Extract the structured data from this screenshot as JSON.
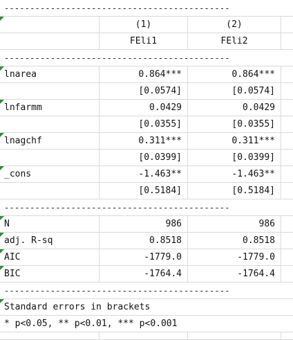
{
  "rows": [
    {
      "c1": "--------------------------------------------",
      "c2": "",
      "c3": "",
      "c4": ""
    },
    {
      "c1": "",
      "c2": "(1)",
      "c3": "(2)",
      "c4": ""
    },
    {
      "c1": "",
      "c2": "FEli1",
      "c3": "FEli2",
      "c4": ""
    },
    {
      "c1": "--------------------------------------------",
      "c2": "",
      "c3": "",
      "c4": ""
    },
    {
      "c1": "lnarea",
      "c2": "0.864***",
      "c3": "0.864***",
      "c4": ""
    },
    {
      "c1": "",
      "c2": "[0.0574]",
      "c3": "[0.0574]",
      "c4": ""
    },
    {
      "c1": "lnfarmm",
      "c2": "0.0429",
      "c3": "0.0429",
      "c4": ""
    },
    {
      "c1": "",
      "c2": "[0.0355]",
      "c3": "[0.0355]",
      "c4": ""
    },
    {
      "c1": "lnagchf",
      "c2": "0.311***",
      "c3": "0.311***",
      "c4": ""
    },
    {
      "c1": "",
      "c2": "[0.0399]",
      "c3": "[0.0399]",
      "c4": ""
    },
    {
      "c1": "_cons",
      "c2": "-1.463**",
      "c3": "-1.463**",
      "c4": ""
    },
    {
      "c1": "",
      "c2": "[0.5184]",
      "c3": "[0.5184]",
      "c4": ""
    },
    {
      "c1": "--------------------------------------------",
      "c2": "",
      "c3": "",
      "c4": ""
    },
    {
      "c1": "N",
      "c2": "986",
      "c3": "986",
      "c4": ""
    },
    {
      "c1": "adj. R-sq",
      "c2": "0.8518",
      "c3": "0.8518",
      "c4": ""
    },
    {
      "c1": "AIC",
      "c2": "-1779.0",
      "c3": "-1779.0",
      "c4": ""
    },
    {
      "c1": "BIC",
      "c2": "-1764.4",
      "c3": "-1764.4",
      "c4": ""
    },
    {
      "c1": "--------------------------------------------",
      "c2": "",
      "c3": "",
      "c4": ""
    },
    {
      "c1": "Standard errors in brackets",
      "c2": "",
      "c3": "",
      "c4": ""
    },
    {
      "c1": "* p<0.05, ** p<0.01, *** p<0.001",
      "c2": "",
      "c3": "",
      "c4": ""
    }
  ]
}
